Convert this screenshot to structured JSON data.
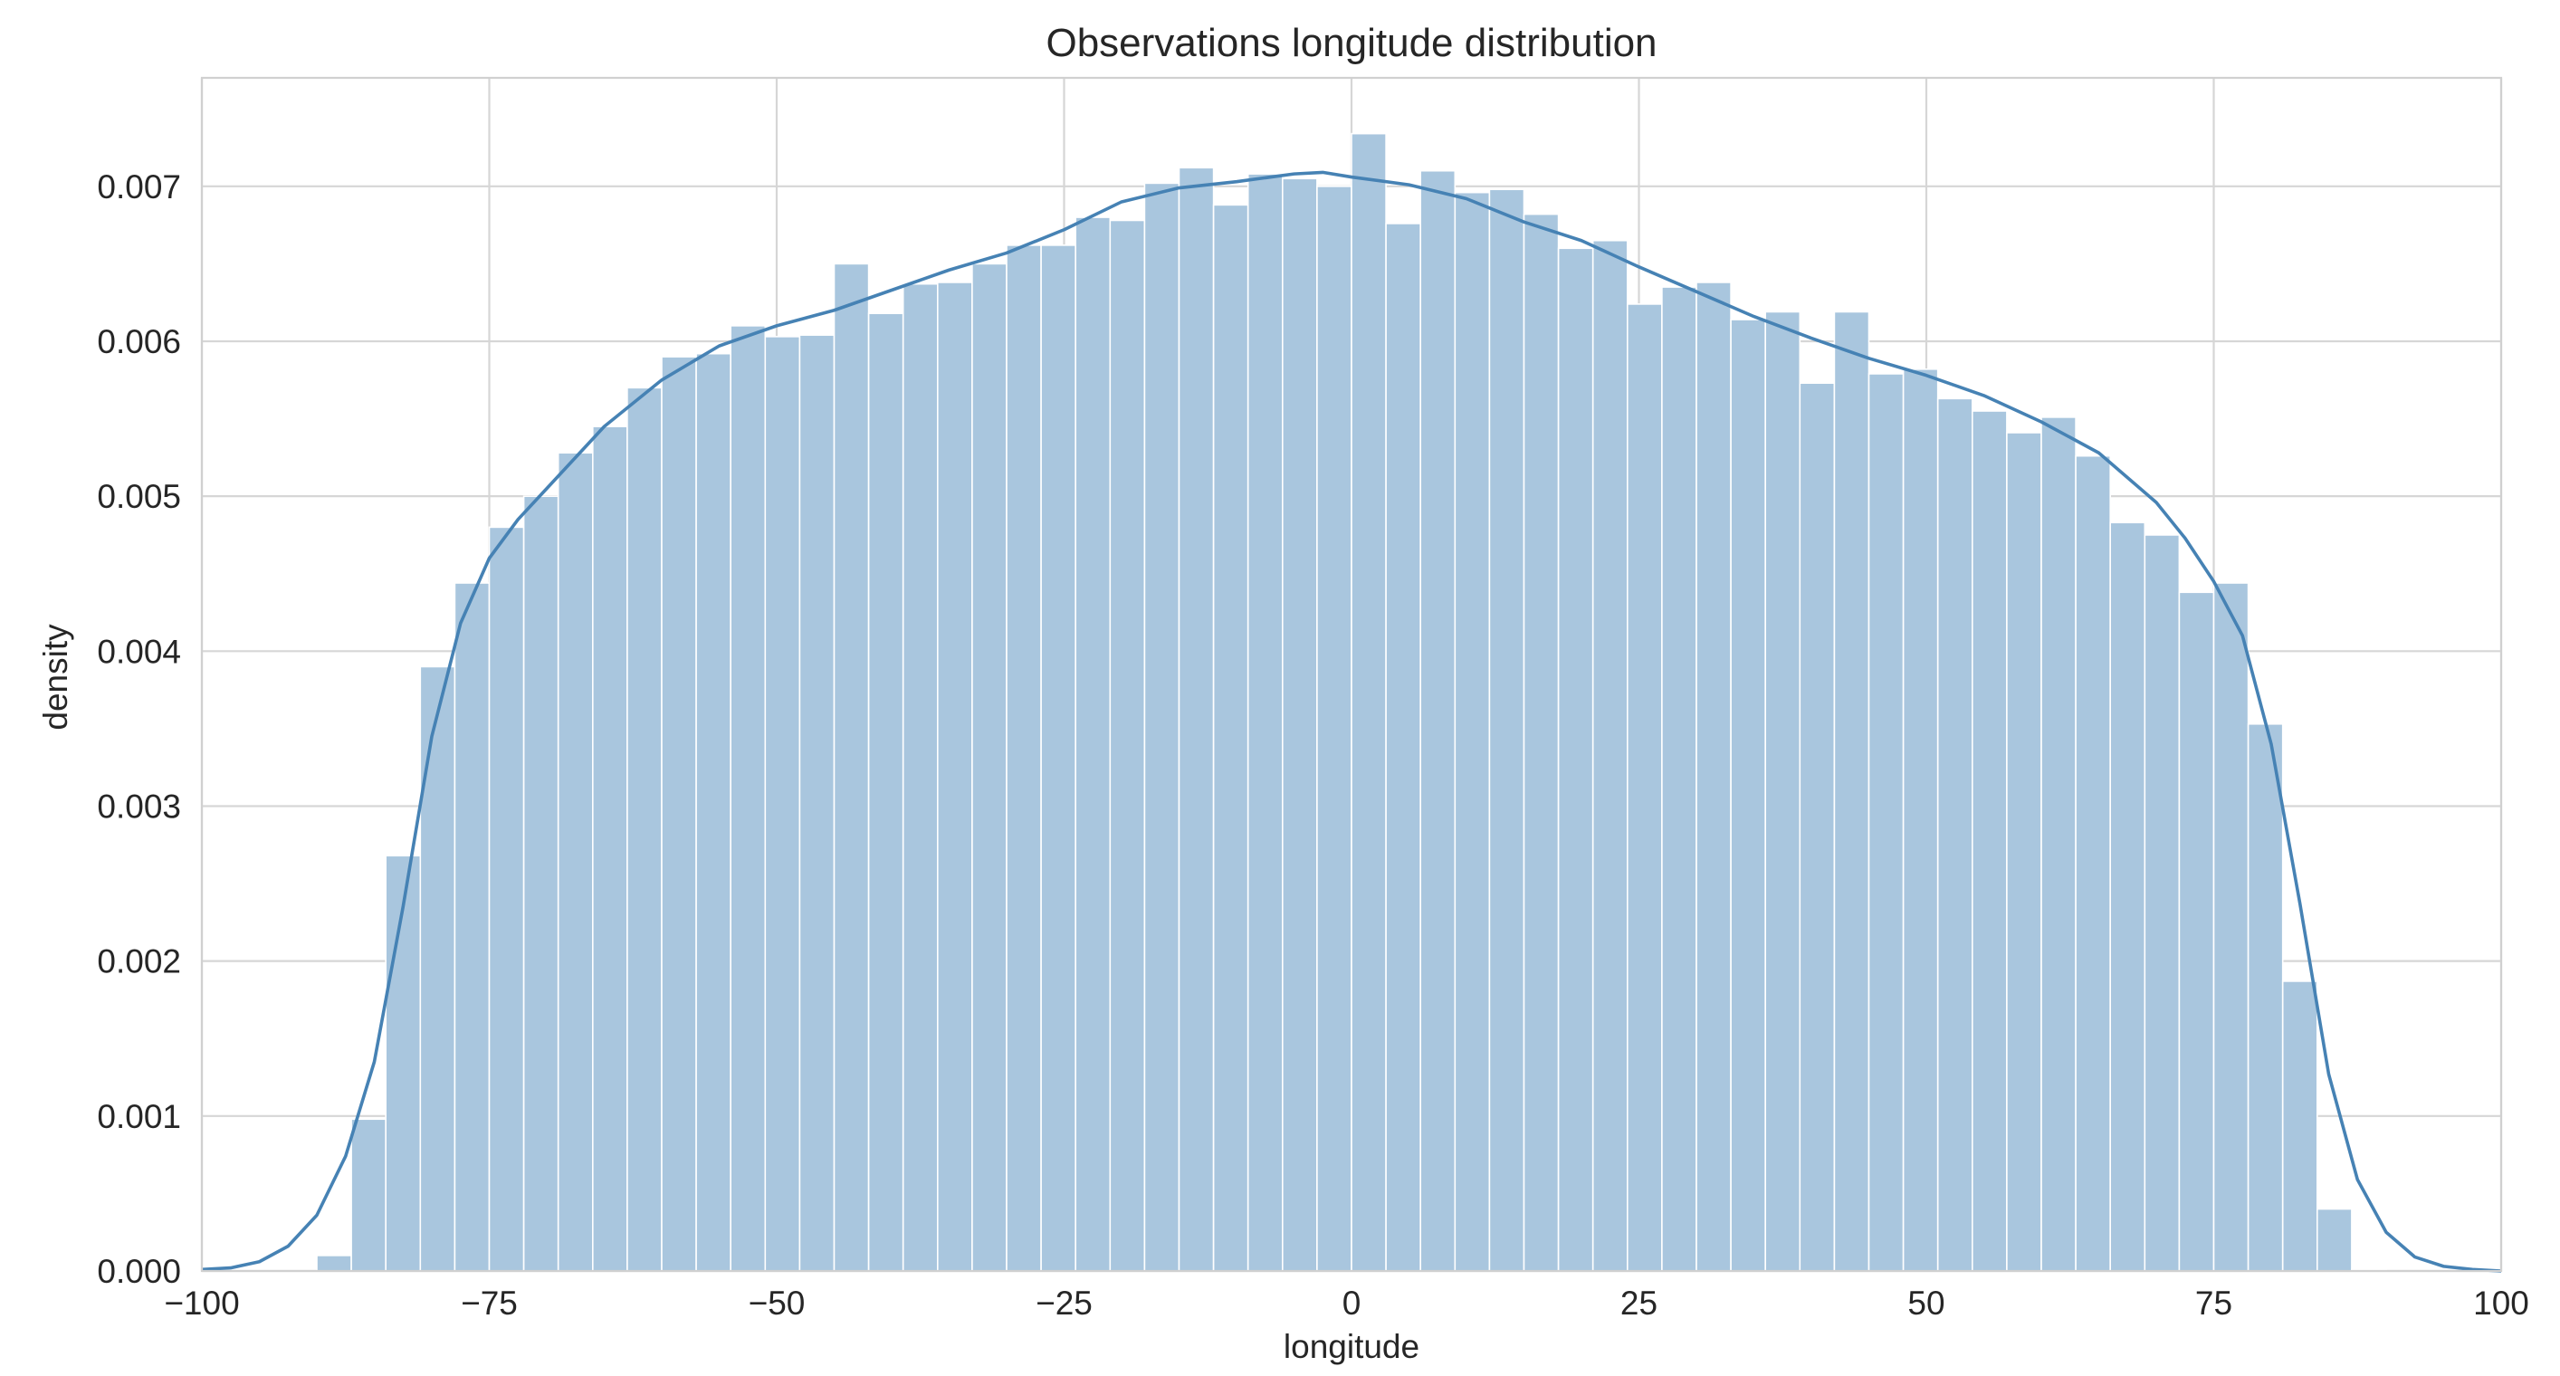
{
  "chart_data": {
    "type": "bar",
    "title": "Observations longitude distribution",
    "xlabel": "longitude",
    "ylabel": "density",
    "xlim": [
      -100,
      100
    ],
    "ylim": [
      0,
      0.0077
    ],
    "x_ticks": [
      -100,
      -75,
      -50,
      -25,
      0,
      25,
      50,
      75,
      100
    ],
    "x_tick_labels": [
      "−100",
      "−75",
      "−50",
      "−25",
      "0",
      "25",
      "50",
      "75",
      "100"
    ],
    "y_ticks": [
      0,
      0.001,
      0.002,
      0.003,
      0.004,
      0.005,
      0.006,
      0.007
    ],
    "y_tick_labels": [
      "0.000",
      "0.001",
      "0.002",
      "0.003",
      "0.004",
      "0.005",
      "0.006",
      "0.007"
    ],
    "grid": true,
    "histogram": {
      "bin_edges": [
        -90,
        -87,
        -84,
        -81,
        -78,
        -75,
        -72,
        -69,
        -66,
        -63,
        -60,
        -57,
        -54,
        -51,
        -48,
        -45,
        -42,
        -39,
        -36,
        -33,
        -30,
        -27,
        -24,
        -21,
        -18,
        -15,
        -12,
        -9,
        -6,
        -3,
        0,
        3,
        6,
        9,
        12,
        15,
        18,
        21,
        24,
        27,
        30,
        33,
        36,
        39,
        42,
        45,
        48,
        51,
        54,
        57,
        60,
        63,
        66,
        69,
        72,
        75,
        78,
        81,
        84,
        87,
        90
      ],
      "values": [
        0.0001,
        0.00098,
        0.00268,
        0.0039,
        0.00444,
        0.0048,
        0.005,
        0.00528,
        0.00545,
        0.0057,
        0.0059,
        0.00592,
        0.0061,
        0.00603,
        0.00604,
        0.0065,
        0.00618,
        0.00637,
        0.00638,
        0.0065,
        0.00662,
        0.00662,
        0.0068,
        0.00678,
        0.00702,
        0.00712,
        0.00688,
        0.00708,
        0.00705,
        0.007,
        0.00734,
        0.00676,
        0.0071,
        0.00696,
        0.00698,
        0.00682,
        0.0066,
        0.00665,
        0.00624,
        0.00635,
        0.00638,
        0.00614,
        0.00619,
        0.00573,
        0.00619,
        0.00579,
        0.00582,
        0.00563,
        0.00555,
        0.00541,
        0.00551,
        0.00526,
        0.00483,
        0.00475,
        0.00438,
        0.00444,
        0.00353,
        0.00187,
        0.0004,
        1e-05
      ],
      "color": "#a9c6de"
    },
    "kde": {
      "x": [
        -100,
        -97.5,
        -95,
        -92.5,
        -90,
        -87.5,
        -85,
        -82.5,
        -80,
        -77.5,
        -75,
        -72.5,
        -70,
        -65,
        -60,
        -55,
        -50,
        -45,
        -40,
        -35,
        -30,
        -25,
        -20,
        -15,
        -10,
        -5,
        -2.5,
        0,
        5,
        10,
        15,
        20,
        25,
        30,
        35,
        40,
        45,
        50,
        55,
        60,
        65,
        70,
        72.5,
        75,
        77.5,
        80,
        82.5,
        85,
        87.5,
        90,
        92.5,
        95,
        97.5,
        100
      ],
      "y": [
        1e-05,
        2e-05,
        6e-05,
        0.00016,
        0.00036,
        0.00074,
        0.00135,
        0.00235,
        0.00345,
        0.00418,
        0.0046,
        0.00485,
        0.00505,
        0.00545,
        0.00575,
        0.00597,
        0.0061,
        0.0062,
        0.00633,
        0.00646,
        0.00657,
        0.00672,
        0.0069,
        0.00699,
        0.00703,
        0.00708,
        0.00709,
        0.00706,
        0.00701,
        0.00692,
        0.00677,
        0.00665,
        0.00648,
        0.00632,
        0.00616,
        0.00602,
        0.00589,
        0.00578,
        0.00565,
        0.00548,
        0.00528,
        0.00496,
        0.00473,
        0.00445,
        0.0041,
        0.0034,
        0.00237,
        0.00127,
        0.00059,
        0.00025,
        9e-05,
        3e-05,
        1e-05,
        0.0
      ],
      "color": "#4682b4"
    }
  }
}
